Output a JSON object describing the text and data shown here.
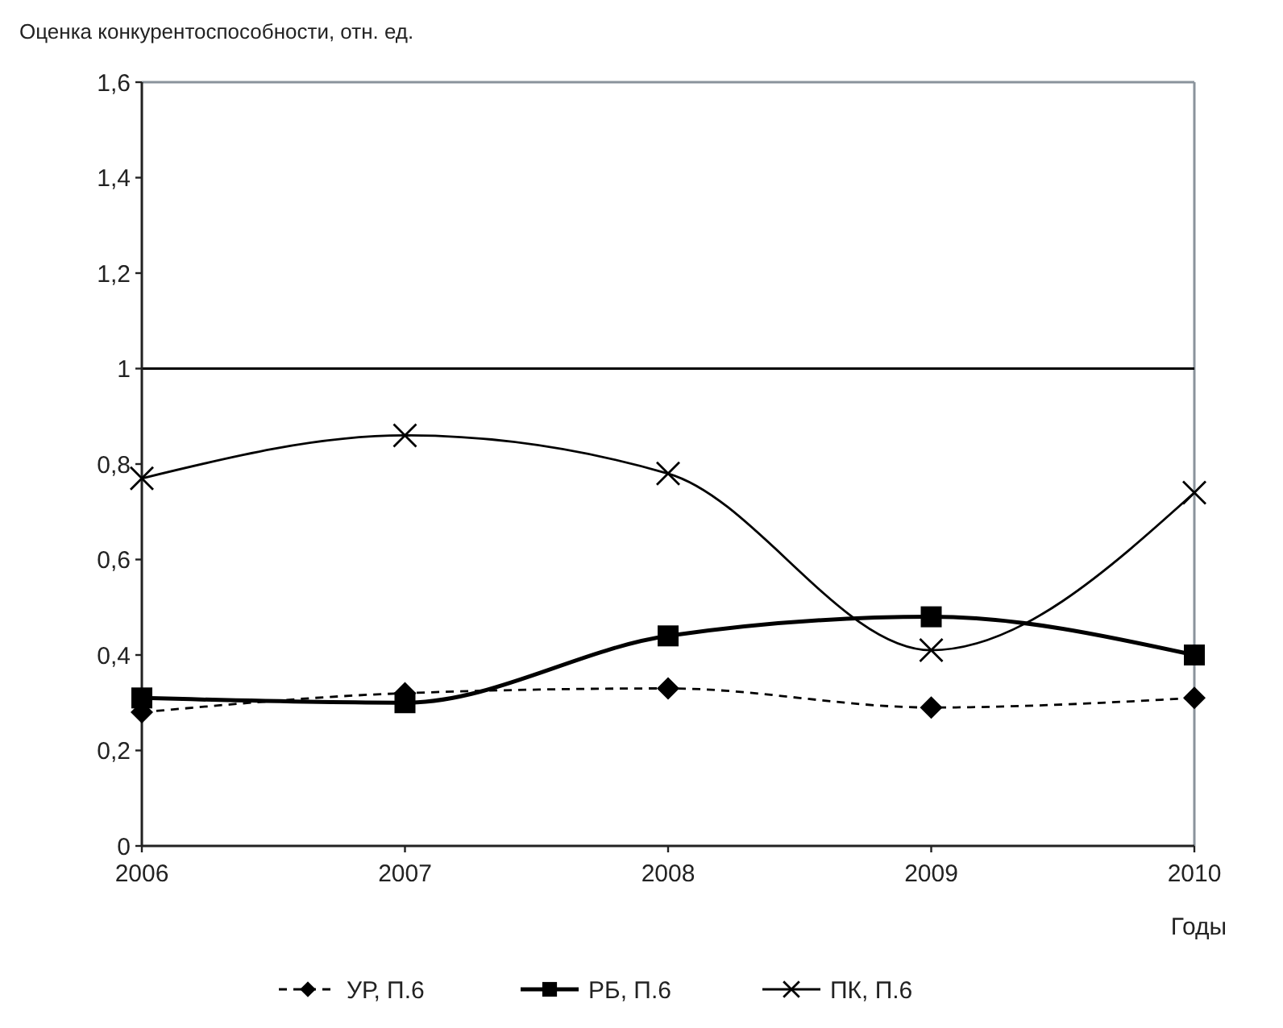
{
  "chart_data": {
    "type": "line",
    "ylabel": "Оценка конкурентоспособности, отн. ед.",
    "xlabel": "Годы",
    "x": [
      2006,
      2007,
      2008,
      2009,
      2010
    ],
    "xlim": [
      2006,
      2010
    ],
    "xticks": [
      2006,
      2007,
      2008,
      2009,
      2010
    ],
    "ylim": [
      0,
      1.6
    ],
    "yticks": [
      0,
      {
        "value": 0.2,
        "label": "0,2"
      },
      {
        "value": 0.4,
        "label": "0,4"
      },
      {
        "value": 0.6,
        "label": "0,6"
      },
      {
        "value": 0.8,
        "label": "0,8"
      },
      1,
      {
        "value": 1.2,
        "label": "1,2"
      },
      {
        "value": 1.4,
        "label": "1,4"
      },
      {
        "value": 1.6,
        "label": "1,6"
      }
    ],
    "grid": false,
    "legend": "bottom",
    "ref_lines": [
      {
        "axis": "y",
        "value": 1,
        "color": "#000000"
      }
    ],
    "series": [
      {
        "name": "УР, П.6",
        "color": "#000000",
        "marker": "diamond",
        "line_style": "dashed",
        "values": [
          0.28,
          0.32,
          0.33,
          0.29,
          0.31
        ]
      },
      {
        "name": "РБ, П.6",
        "color": "#000000",
        "marker": "square",
        "line_style": "solid",
        "values": [
          0.31,
          0.3,
          0.44,
          0.48,
          0.4
        ]
      },
      {
        "name": "ПК, П.6",
        "color": "#000000",
        "marker": "cross",
        "line_style": "solid",
        "values": [
          0.77,
          0.86,
          0.78,
          0.41,
          0.74
        ]
      }
    ]
  }
}
